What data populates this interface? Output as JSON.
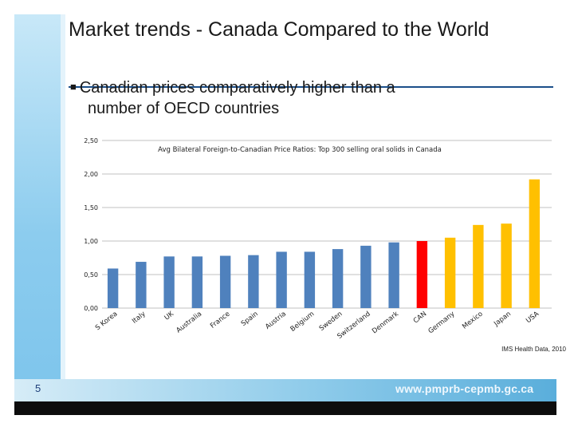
{
  "slide": {
    "title": "Market trends - Canada Compared to the World",
    "bullet": "Canadian prices comparatively higher than a",
    "bullet_cont": "number of OECD countries",
    "source": "IMS Health Data, 2010",
    "page_number": "5",
    "website": "www.pmprb-cepmb.gc.ca"
  },
  "colors": {
    "blue": "#4f81bd",
    "canada": "#ff0000",
    "higher": "#ffc000",
    "gridline": "#c0c0c0"
  },
  "chart_data": {
    "type": "bar",
    "title": "Avg Bilateral Foreign-to-Canadian Price Ratios: Top 300 selling oral solids in Canada",
    "xlabel": "",
    "ylabel": "",
    "ylim": [
      0,
      2.5
    ],
    "yticks": [
      "0,00",
      "0,50",
      "1,00",
      "1,50",
      "2,00",
      "2,50"
    ],
    "ytick_values": [
      0,
      0.5,
      1,
      1.5,
      2,
      2.5
    ],
    "categories": [
      "S Korea",
      "Italy",
      "UK",
      "Australia",
      "France",
      "Spain",
      "Austria",
      "Belgium",
      "Sweden",
      "Switzerland",
      "Denmark",
      "CAN",
      "Germany",
      "Mexico",
      "Japan",
      "USA"
    ],
    "values": [
      0.59,
      0.69,
      0.77,
      0.77,
      0.78,
      0.79,
      0.84,
      0.84,
      0.88,
      0.93,
      0.98,
      1.0,
      1.05,
      1.24,
      1.26,
      1.92
    ],
    "bar_groups": [
      "lower",
      "lower",
      "lower",
      "lower",
      "lower",
      "lower",
      "lower",
      "lower",
      "lower",
      "lower",
      "lower",
      "canada",
      "higher",
      "higher",
      "higher",
      "higher"
    ]
  }
}
